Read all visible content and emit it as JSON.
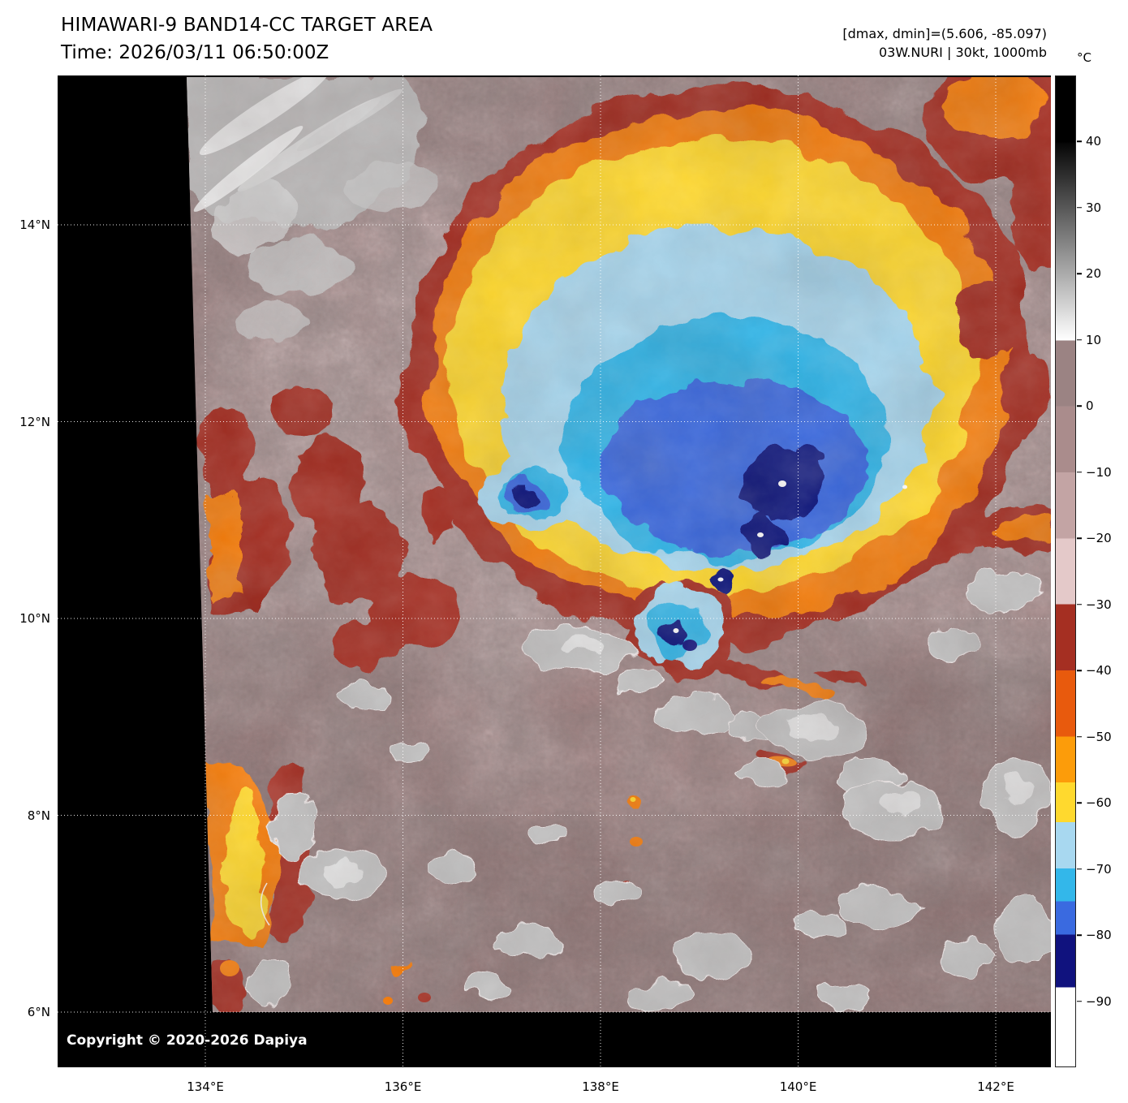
{
  "header": {
    "title": "HIMAWARI-9 BAND14-CC TARGET AREA",
    "time": "Time: 2026/03/11 06:50:00Z",
    "dmax_dmin": "[dmax, dmin]=(5.606, -85.097)",
    "storm": "03W.NURI | 30kt, 1000mb"
  },
  "map": {
    "copyright": "Copyright © 2020-2026 Dapiya"
  },
  "axes": {
    "lat_ticks": [
      {
        "label": "14°N",
        "value": 14
      },
      {
        "label": "12°N",
        "value": 12
      },
      {
        "label": "10°N",
        "value": 10
      },
      {
        "label": "8°N",
        "value": 8
      },
      {
        "label": "6°N",
        "value": 6
      }
    ],
    "lon_ticks": [
      {
        "label": "134°E",
        "value": 134
      },
      {
        "label": "136°E",
        "value": 136
      },
      {
        "label": "138°E",
        "value": 138
      },
      {
        "label": "140°E",
        "value": 140
      },
      {
        "label": "142°E",
        "value": 142
      }
    ]
  },
  "colorbar": {
    "unit": "°C",
    "scale_max": 50,
    "scale_min": -100,
    "ticks": [
      {
        "label": "40",
        "value": 40
      },
      {
        "label": "30",
        "value": 30
      },
      {
        "label": "20",
        "value": 20
      },
      {
        "label": "10",
        "value": 10
      },
      {
        "label": "0",
        "value": 0
      },
      {
        "label": "−10",
        "value": -10
      },
      {
        "label": "−20",
        "value": -20
      },
      {
        "label": "−30",
        "value": -30
      },
      {
        "label": "−40",
        "value": -40
      },
      {
        "label": "−50",
        "value": -50
      },
      {
        "label": "−60",
        "value": -60
      },
      {
        "label": "−70",
        "value": -70
      },
      {
        "label": "−80",
        "value": -80
      },
      {
        "label": "−90",
        "value": -90
      }
    ],
    "segments": [
      {
        "from": 50,
        "to": 40,
        "color": "#000000"
      },
      {
        "from": 40,
        "to": 10,
        "color": "#050505",
        "color_end": "#ffffff"
      },
      {
        "from": 10,
        "to": 0,
        "color": "#9b8383"
      },
      {
        "from": 0,
        "to": -10,
        "color": "#aa8c8c"
      },
      {
        "from": -10,
        "to": -20,
        "color": "#c3a4a4"
      },
      {
        "from": -20,
        "to": -30,
        "color": "#e4c9c9"
      },
      {
        "from": -30,
        "to": -40,
        "color": "#a52f22"
      },
      {
        "from": -40,
        "to": -50,
        "color": "#e85a0d"
      },
      {
        "from": -50,
        "to": -57,
        "color": "#fc9c0a"
      },
      {
        "from": -57,
        "to": -63,
        "color": "#ffd92e"
      },
      {
        "from": -63,
        "to": -70,
        "color": "#a8d8f0"
      },
      {
        "from": -70,
        "to": -75,
        "color": "#33b7ea"
      },
      {
        "from": -75,
        "to": -80,
        "color": "#3a6ae0"
      },
      {
        "from": -80,
        "to": -88,
        "color": "#10127e"
      },
      {
        "from": -88,
        "to": -100,
        "color": "#ffffff"
      }
    ]
  }
}
